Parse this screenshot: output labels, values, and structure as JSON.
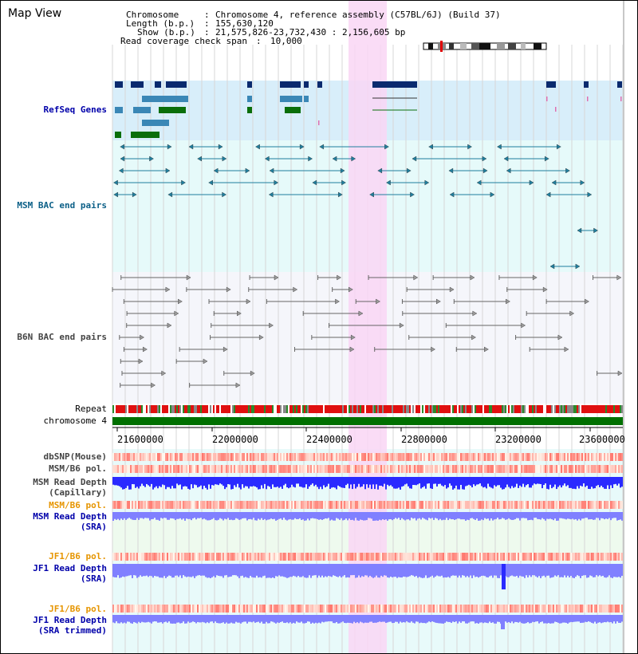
{
  "app": {
    "title": "Map View"
  },
  "info": {
    "line1_key": "Chromosome",
    "line1_val": "Chromosome 4, reference assembly (C57BL/6J) (Build 37)",
    "line2_key": "Length (b.p.)",
    "line2_val": "155,630,120",
    "line3_key": "Show (b.p.)",
    "line3_val": "21,575,826-23,732,430 : 2,156,605 bp",
    "line4_key": "Read coverage check span",
    "line4_val": "10,000"
  },
  "tracks": {
    "refseq": "RefSeq Genes",
    "msm_bac": "MSM BAC end pairs",
    "b6n_bac": "B6N BAC end pairs",
    "repeat": "Repeat",
    "chromosome": "chromosome 4",
    "dbsnp": "dbSNP(Mouse)",
    "msm_b6_pol_1": "MSM/B6 pol.",
    "msm_read_depth_cap_1": "MSM Read Depth",
    "msm_read_depth_cap_2": "(Capillary)",
    "msm_b6_pol_2": "MSM/B6 pol.",
    "msm_read_depth_sra_1": "MSM Read Depth",
    "msm_read_depth_sra_2": "(SRA)",
    "jf1_b6_pol_1": "JF1/B6 pol.",
    "jf1_read_depth_sra_1": "JF1 Read Depth",
    "jf1_read_depth_sra_2": "(SRA)",
    "jf1_b6_pol_2": "JF1/B6 pol.",
    "jf1_read_depth_trim_1": "JF1 Read Depth",
    "jf1_read_depth_trim_2": "(SRA trimmed)"
  },
  "axis": {
    "ticks": [
      "21600000",
      "22000000",
      "22400000",
      "22800000",
      "23200000",
      "23600000"
    ]
  },
  "colors": {
    "highlight": "#f9d6f5",
    "refseq_bg": "#d8eefa",
    "msm_bg": "#e6fafa",
    "b6n_bg": "#f5f6fb",
    "gene_navy": "#0a2a6e",
    "gene_teal": "#3a87b6",
    "gene_green": "#0a6e0a",
    "bac_teal": "#1f7e9e",
    "bac_grey": "#666666",
    "chrom_green": "#007000",
    "depth_blue": "#2a2aff",
    "depth_light": "#8080ff",
    "pol_red": "#e83030"
  }
}
